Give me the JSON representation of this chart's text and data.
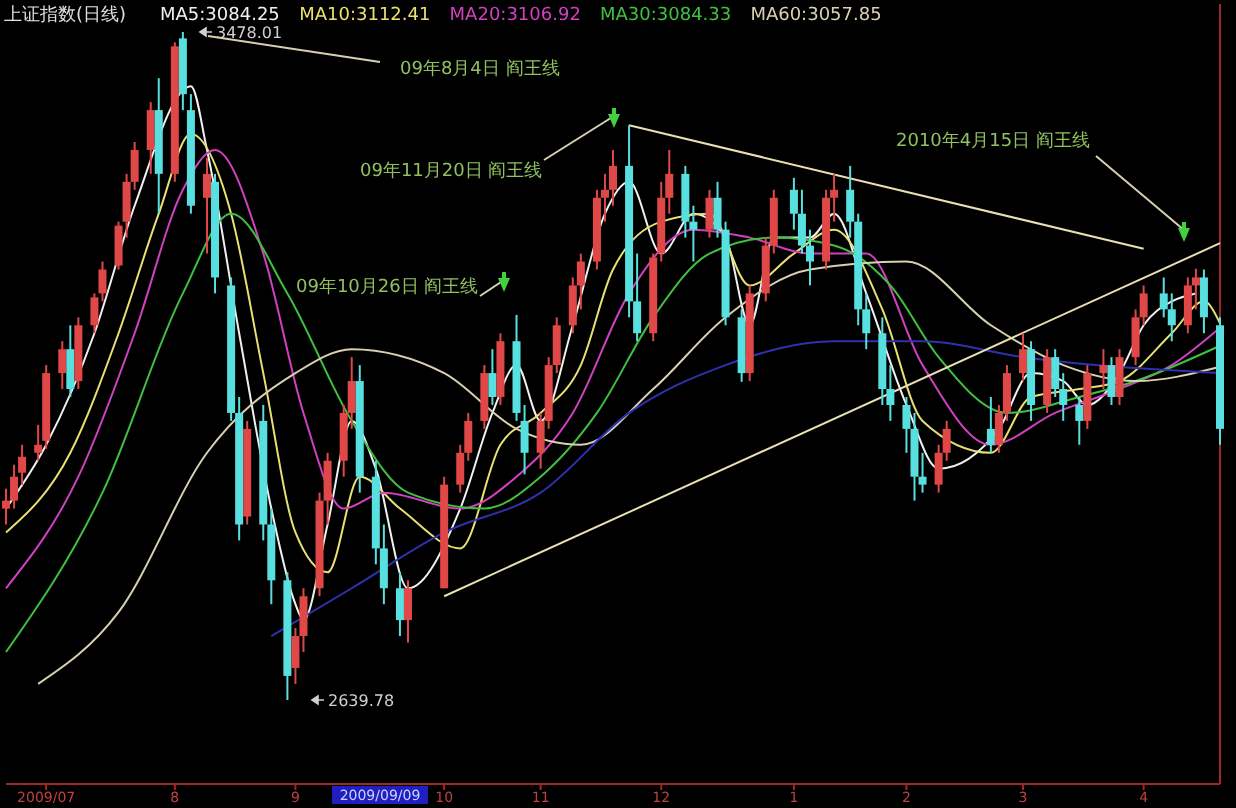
{
  "chart_data": {
    "type": "candlestick",
    "title": "上证指数(日线)",
    "legend": "top",
    "xlim": [
      "2009-06-22",
      "2010-04-20"
    ],
    "x": [
      "2009-06-22",
      "2009-06-24",
      "2009-06-26",
      "2009-06-30",
      "2009-07-02",
      "2009-07-06",
      "2009-07-08",
      "2009-07-10",
      "2009-07-14",
      "2009-07-16",
      "2009-07-20",
      "2009-07-22",
      "2009-07-24",
      "2009-07-28",
      "2009-07-30",
      "2009-08-03",
      "2009-08-05",
      "2009-08-07",
      "2009-08-11",
      "2009-08-13",
      "2009-08-17",
      "2009-08-19",
      "2009-08-21",
      "2009-08-25",
      "2009-08-27",
      "2009-08-31",
      "2009-09-02",
      "2009-09-04",
      "2009-09-08",
      "2009-09-10",
      "2009-09-14",
      "2009-09-16",
      "2009-09-18",
      "2009-09-22",
      "2009-09-24",
      "2009-09-28",
      "2009-09-30",
      "2009-10-09",
      "2009-10-13",
      "2009-10-15",
      "2009-10-19",
      "2009-10-21",
      "2009-10-23",
      "2009-10-27",
      "2009-10-29",
      "2009-11-02",
      "2009-11-04",
      "2009-11-06",
      "2009-11-10",
      "2009-11-12",
      "2009-11-16",
      "2009-11-18",
      "2009-11-20",
      "2009-11-24",
      "2009-11-26",
      "2009-11-30",
      "2009-12-02",
      "2009-12-04",
      "2009-12-08",
      "2009-12-10",
      "2009-12-14",
      "2009-12-16",
      "2009-12-18",
      "2009-12-22",
      "2009-12-24",
      "2009-12-28",
      "2009-12-30",
      "2010-01-04",
      "2010-01-06",
      "2010-01-08",
      "2010-01-12",
      "2010-01-14",
      "2010-01-18",
      "2010-01-20",
      "2010-01-22",
      "2010-01-26",
      "2010-01-28",
      "2010-02-01",
      "2010-02-03",
      "2010-02-05",
      "2010-02-09",
      "2010-02-11",
      "2010-02-22",
      "2010-02-24",
      "2010-02-26",
      "2010-03-02",
      "2010-03-04",
      "2010-03-08",
      "2010-03-10",
      "2010-03-12",
      "2010-03-16",
      "2010-03-18",
      "2010-03-22",
      "2010-03-24",
      "2010-03-26",
      "2010-03-30",
      "2010-04-01",
      "2010-04-06",
      "2010-04-08",
      "2010-04-12",
      "2010-04-14",
      "2010-04-16",
      "2010-04-20"
    ],
    "ohlc": [
      [
        2880,
        2905,
        2860,
        2890
      ],
      [
        2890,
        2935,
        2880,
        2920
      ],
      [
        2925,
        2960,
        2910,
        2945
      ],
      [
        2950,
        2985,
        2940,
        2960
      ],
      [
        2965,
        3060,
        2955,
        3050
      ],
      [
        3050,
        3090,
        3030,
        3080
      ],
      [
        3080,
        3110,
        3020,
        3030
      ],
      [
        3040,
        3120,
        3030,
        3110
      ],
      [
        3110,
        3150,
        3100,
        3145
      ],
      [
        3150,
        3190,
        3140,
        3180
      ],
      [
        3185,
        3240,
        3180,
        3235
      ],
      [
        3240,
        3300,
        3220,
        3290
      ],
      [
        3290,
        3340,
        3280,
        3330
      ],
      [
        3330,
        3390,
        3300,
        3380
      ],
      [
        3380,
        3420,
        3250,
        3300
      ],
      [
        3300,
        3465,
        3290,
        3460
      ],
      [
        3470,
        3478.01,
        3380,
        3400
      ],
      [
        3380,
        3400,
        3250,
        3260
      ],
      [
        3270,
        3320,
        3200,
        3300
      ],
      [
        3290,
        3300,
        3150,
        3170
      ],
      [
        3160,
        3170,
        2990,
        3000
      ],
      [
        3000,
        3020,
        2840,
        2860
      ],
      [
        2870,
        2990,
        2860,
        2980
      ],
      [
        2990,
        3010,
        2840,
        2860
      ],
      [
        2860,
        2880,
        2760,
        2790
      ],
      [
        2790,
        2800,
        2639.78,
        2670
      ],
      [
        2680,
        2730,
        2660,
        2720
      ],
      [
        2720,
        2780,
        2700,
        2770
      ],
      [
        2780,
        2900,
        2770,
        2890
      ],
      [
        2890,
        2950,
        2860,
        2940
      ],
      [
        2940,
        3010,
        2920,
        3000
      ],
      [
        3000,
        3070,
        2980,
        3040
      ],
      [
        3040,
        3060,
        2900,
        2920
      ],
      [
        2920,
        2940,
        2810,
        2830
      ],
      [
        2830,
        2860,
        2760,
        2780
      ],
      [
        2780,
        2800,
        2720,
        2740
      ],
      [
        2740,
        2790,
        2712,
        2780
      ],
      [
        2780,
        2920,
        2780,
        2910
      ],
      [
        2910,
        2960,
        2900,
        2950
      ],
      [
        2950,
        3000,
        2940,
        2990
      ],
      [
        2990,
        3060,
        2980,
        3050
      ],
      [
        3050,
        3080,
        3010,
        3020
      ],
      [
        3020,
        3100,
        3010,
        3090
      ],
      [
        3090,
        3123,
        2990,
        3000
      ],
      [
        2990,
        3010,
        2923,
        2950
      ],
      [
        2950,
        3000,
        2930,
        2990
      ],
      [
        2990,
        3070,
        2980,
        3060
      ],
      [
        3060,
        3120,
        3050,
        3110
      ],
      [
        3110,
        3170,
        3100,
        3160
      ],
      [
        3160,
        3200,
        3130,
        3190
      ],
      [
        3190,
        3280,
        3180,
        3270
      ],
      [
        3270,
        3300,
        3240,
        3280
      ],
      [
        3280,
        3330,
        3260,
        3310
      ],
      [
        3310,
        3361,
        3120,
        3140
      ],
      [
        3140,
        3200,
        3090,
        3100
      ],
      [
        3100,
        3200,
        3090,
        3195
      ],
      [
        3200,
        3290,
        3190,
        3270
      ],
      [
        3270,
        3330,
        3250,
        3300
      ],
      [
        3300,
        3310,
        3220,
        3240
      ],
      [
        3240,
        3260,
        3190,
        3230
      ],
      [
        3230,
        3280,
        3220,
        3270
      ],
      [
        3270,
        3290,
        3220,
        3230
      ],
      [
        3230,
        3240,
        3110,
        3120
      ],
      [
        3120,
        3130,
        3039,
        3050
      ],
      [
        3050,
        3160,
        3040,
        3150
      ],
      [
        3150,
        3220,
        3140,
        3210
      ],
      [
        3210,
        3280,
        3200,
        3270
      ],
      [
        3280,
        3295,
        3230,
        3250
      ],
      [
        3250,
        3280,
        3200,
        3210
      ],
      [
        3210,
        3230,
        3160,
        3190
      ],
      [
        3190,
        3280,
        3180,
        3270
      ],
      [
        3270,
        3300,
        3240,
        3280
      ],
      [
        3280,
        3310,
        3220,
        3240
      ],
      [
        3240,
        3250,
        3110,
        3130
      ],
      [
        3130,
        3150,
        3080,
        3100
      ],
      [
        3100,
        3120,
        3010,
        3030
      ],
      [
        3030,
        3060,
        2990,
        3010
      ],
      [
        3010,
        3020,
        2950,
        2980
      ],
      [
        2980,
        3000,
        2890,
        2920
      ],
      [
        2920,
        2950,
        2900,
        2910
      ],
      [
        2910,
        2960,
        2900,
        2950
      ],
      [
        2950,
        2990,
        2940,
        2980
      ],
      [
        2980,
        3020,
        2950,
        2960
      ],
      [
        2960,
        3010,
        2950,
        3000
      ],
      [
        3000,
        3060,
        2990,
        3050
      ],
      [
        3050,
        3100,
        3040,
        3080
      ],
      [
        3080,
        3090,
        2990,
        3010
      ],
      [
        3010,
        3080,
        3000,
        3070
      ],
      [
        3070,
        3080,
        3020,
        3030
      ],
      [
        3030,
        3050,
        2990,
        3010
      ],
      [
        3010,
        3020,
        2960,
        2990
      ],
      [
        2990,
        3060,
        2980,
        3050
      ],
      [
        3050,
        3080,
        3030,
        3060
      ],
      [
        3060,
        3070,
        3010,
        3020
      ],
      [
        3020,
        3080,
        3010,
        3070
      ],
      [
        3070,
        3130,
        3060,
        3120
      ],
      [
        3120,
        3160,
        3110,
        3150
      ],
      [
        3150,
        3170,
        3120,
        3130
      ],
      [
        3130,
        3150,
        3090,
        3110
      ],
      [
        3110,
        3170,
        3100,
        3160
      ],
      [
        3160,
        3181,
        3130,
        3170
      ],
      [
        3170,
        3180,
        3100,
        3120
      ],
      [
        3110,
        3120,
        2960,
        2980
      ]
    ],
    "xticks": [
      {
        "value": "2009-07-02",
        "label": "2009/07"
      },
      {
        "value": "2009-08-03",
        "label": "8"
      },
      {
        "value": "2009-09-02",
        "label": "9"
      },
      {
        "value": "2009-10-09",
        "label": "10"
      },
      {
        "value": "2009-11-02",
        "label": "11"
      },
      {
        "value": "2009-12-02",
        "label": "12"
      },
      {
        "value": "2010-01-04",
        "label": "1"
      },
      {
        "value": "2010-02-01",
        "label": "2"
      },
      {
        "value": "2010-03-02",
        "label": "3"
      },
      {
        "value": "2010-04-01",
        "label": "4"
      }
    ],
    "series": [
      {
        "type": "line",
        "name": "MA5:3084.25",
        "color": "#f0f0f0",
        "x": [
          "2009-06-22",
          "2009-07-02",
          "2009-07-14",
          "2009-07-24",
          "2009-08-07",
          "2009-08-11",
          "2009-08-19",
          "2009-08-27",
          "2009-09-02",
          "2009-09-04",
          "2009-09-10",
          "2009-09-16",
          "2009-09-22",
          "2009-09-30",
          "2009-10-13",
          "2009-10-21",
          "2009-10-27",
          "2009-11-02",
          "2009-11-10",
          "2009-11-18",
          "2009-11-24",
          "2009-12-02",
          "2009-12-10",
          "2009-12-18",
          "2009-12-24",
          "2009-12-30",
          "2010-01-08",
          "2010-01-14",
          "2010-01-22",
          "2010-02-01",
          "2010-02-09",
          "2010-02-24",
          "2010-03-04",
          "2010-03-12",
          "2010-03-18",
          "2010-03-26",
          "2010-04-01",
          "2010-04-08",
          "2010-04-14"
        ],
        "values": [
          2880,
          2960,
          3100,
          3260,
          3410,
          3330,
          3100,
          2880,
          2760,
          2740,
          2860,
          2990,
          2930,
          2780,
          2880,
          3000,
          3060,
          2990,
          3110,
          3250,
          3290,
          3200,
          3250,
          3220,
          3110,
          3220,
          3220,
          3250,
          3150,
          3010,
          2930,
          2980,
          3050,
          3040,
          3010,
          3050,
          3110,
          3140,
          3150
        ]
      },
      {
        "type": "line",
        "name": "MA10:3112.41",
        "color": "#e8e070",
        "x": [
          "2009-06-22",
          "2009-07-08",
          "2009-07-20",
          "2009-07-30",
          "2009-08-07",
          "2009-08-17",
          "2009-08-25",
          "2009-09-02",
          "2009-09-10",
          "2009-09-18",
          "2009-09-28",
          "2009-10-13",
          "2009-10-23",
          "2009-11-02",
          "2009-11-12",
          "2009-11-20",
          "2009-12-02",
          "2009-12-14",
          "2009-12-24",
          "2010-01-04",
          "2010-01-14",
          "2010-01-26",
          "2010-02-05",
          "2010-02-22",
          "2010-03-04",
          "2010-03-16",
          "2010-03-26",
          "2010-04-08",
          "2010-04-16",
          "2010-04-20"
        ],
        "values": [
          2850,
          2950,
          3100,
          3250,
          3350,
          3250,
          3050,
          2850,
          2800,
          2920,
          2880,
          2830,
          2960,
          3000,
          3060,
          3180,
          3240,
          3250,
          3160,
          3200,
          3230,
          3130,
          2990,
          2950,
          3020,
          3030,
          3040,
          3100,
          3140,
          3112.41
        ]
      },
      {
        "type": "line",
        "name": "MA20:3106.92",
        "color": "#d040c0",
        "x": [
          "2009-06-22",
          "2009-07-10",
          "2009-07-24",
          "2009-08-05",
          "2009-08-13",
          "2009-08-25",
          "2009-09-04",
          "2009-09-14",
          "2009-09-24",
          "2009-10-13",
          "2009-10-27",
          "2009-11-10",
          "2009-11-24",
          "2009-12-10",
          "2009-12-24",
          "2010-01-08",
          "2010-01-22",
          "2010-02-05",
          "2010-02-22",
          "2010-03-10",
          "2010-03-26",
          "2010-04-08",
          "2010-04-20"
        ],
        "values": [
          2780,
          2920,
          3100,
          3280,
          3330,
          3200,
          3000,
          2880,
          2900,
          2880,
          2920,
          3000,
          3150,
          3230,
          3220,
          3200,
          3200,
          3060,
          2960,
          3000,
          3030,
          3060,
          3106.92
        ]
      },
      {
        "type": "line",
        "name": "MA30:3084.33",
        "color": "#40c040",
        "x": [
          "2009-06-22",
          "2009-07-16",
          "2009-08-05",
          "2009-08-17",
          "2009-08-31",
          "2009-09-16",
          "2009-09-30",
          "2009-10-19",
          "2009-11-02",
          "2009-11-16",
          "2009-11-30",
          "2009-12-14",
          "2009-12-30",
          "2010-01-14",
          "2010-01-28",
          "2010-02-09",
          "2010-02-26",
          "2010-03-16",
          "2010-03-30",
          "2010-04-20"
        ],
        "values": [
          2700,
          2900,
          3150,
          3250,
          3150,
          2990,
          2900,
          2880,
          2920,
          3000,
          3120,
          3200,
          3220,
          3210,
          3160,
          3070,
          3000,
          3020,
          3040,
          3084.33
        ]
      },
      {
        "type": "line",
        "name": "MA60:3057.85",
        "color": "#d8d0b0",
        "x": [
          "2009-06-30",
          "2009-07-20",
          "2009-08-11",
          "2009-09-02",
          "2009-09-16",
          "2009-10-09",
          "2009-10-27",
          "2009-11-12",
          "2009-11-30",
          "2009-12-18",
          "2010-01-08",
          "2010-02-01",
          "2010-02-22",
          "2010-03-12",
          "2010-03-30",
          "2010-04-20"
        ],
        "values": [
          2660,
          2750,
          2950,
          3050,
          3080,
          3050,
          2980,
          2960,
          3030,
          3120,
          3180,
          3190,
          3110,
          3060,
          3040,
          3057.85
        ]
      },
      {
        "type": "line",
        "color": "#3030b0",
        "x": [
          "2009-08-27",
          "2009-09-16",
          "2009-10-09",
          "2009-11-02",
          "2009-11-24",
          "2009-12-18",
          "2010-01-14",
          "2010-02-05",
          "2010-03-02",
          "2010-04-20"
        ],
        "values": [
          2720,
          2780,
          2850,
          2900,
          3000,
          3060,
          3090,
          3090,
          3070,
          3050
        ]
      },
      {
        "type": "line",
        "color": "#e8e0b0",
        "x": [
          "2009-11-24",
          "2010-04-01"
        ],
        "values": [
          3361,
          3206
        ]
      },
      {
        "type": "line",
        "color": "#e8e0b0",
        "x": [
          "2009-10-09",
          "2010-04-20"
        ],
        "values": [
          2770,
          3213
        ]
      }
    ],
    "annotations": [
      "3478.01",
      "2639.78",
      "09年8月4日 阎王线",
      "09年10月26日 阎王线",
      "09年11月20日 阎王线",
      "2010年4月15日 阎王线",
      "2009/09/09"
    ]
  }
}
